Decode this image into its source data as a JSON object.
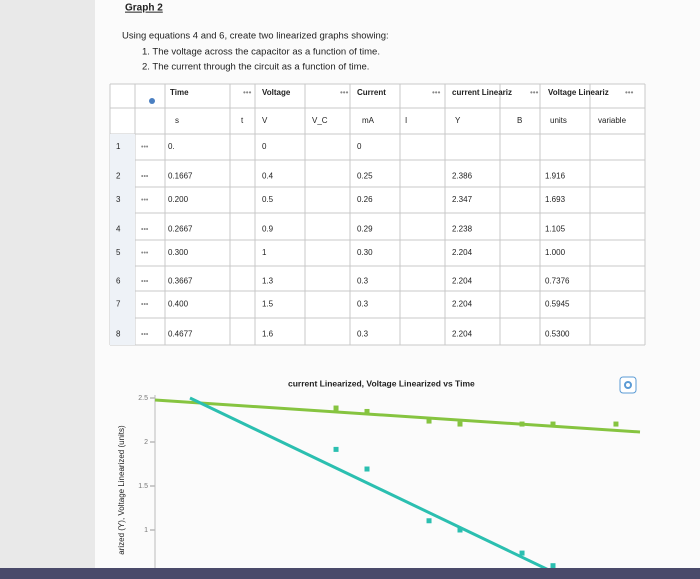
{
  "heading": "Graph 2",
  "instructions": {
    "intro": "Using equations 4 and 6, create two linearized graphs showing:",
    "items": [
      "1. The voltage across the capacitor as a function of time.",
      "2. The current through the circuit as a function of time."
    ]
  },
  "table": {
    "header1": [
      "Time",
      "Voltage",
      "Current",
      "current Lineariz",
      "Voltage Lineariz"
    ],
    "header2": [
      "s",
      "t",
      "V",
      "V_C",
      "mA",
      "I",
      "Y",
      "B",
      "units",
      "variable"
    ],
    "rows": [
      [
        "1",
        "0.",
        "0",
        "0",
        null,
        null
      ],
      [
        "2",
        "0.1667",
        "0.4",
        "0.25",
        "2.386",
        "1.916"
      ],
      [
        "3",
        "0.200",
        "0.5",
        "0.26",
        "2.347",
        "1.693"
      ],
      [
        "4",
        "0.2667",
        "0.9",
        "0.29",
        "2.238",
        "1.105"
      ],
      [
        "5",
        "0.300",
        "1",
        "0.30",
        "2.204",
        "1.000"
      ],
      [
        "6",
        "0.3667",
        "1.3",
        "0.3",
        "2.204",
        "0.7376"
      ],
      [
        "7",
        "0.400",
        "1.5",
        "0.3",
        "2.204",
        "0.5945"
      ],
      [
        "8",
        "0.4677",
        "1.6",
        "0.3",
        "2.204",
        "0.5300"
      ]
    ]
  },
  "chart": {
    "title": "current Linearized, Voltage Linearized vs Time",
    "y_label": "arized (Y), Voltage Linearized (units)",
    "yticks": [
      {
        "value": 2.5,
        "label": "2.5"
      },
      2,
      {
        "value": 1.5,
        "label": "1.5"
      },
      1
    ],
    "series": [
      {
        "color": "#86c440"
      },
      {
        "color": "#2bbfb0"
      }
    ]
  }
}
